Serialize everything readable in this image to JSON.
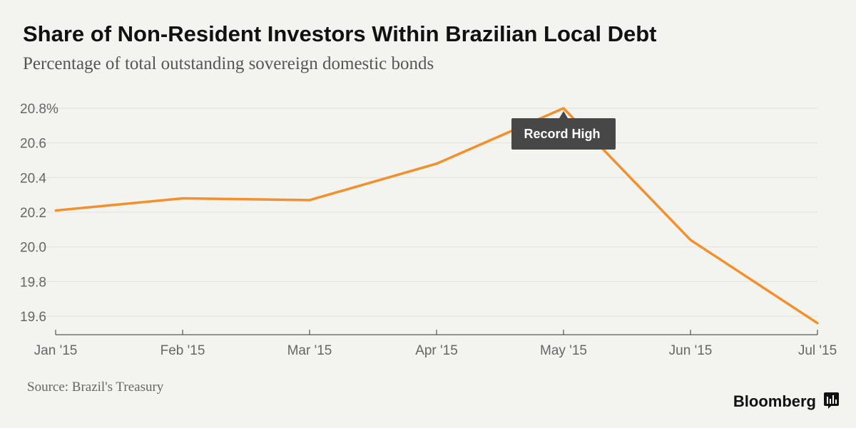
{
  "header": {
    "title": "Share of Non-Resident Investors Within Brazilian Local Debt",
    "subtitle": "Percentage of total outstanding sovereign domestic bonds"
  },
  "footer": {
    "source": "Source: Brazil's Treasury",
    "brand": "Bloomberg"
  },
  "colors": {
    "background": "#f3f3ef",
    "series": "#f4902b",
    "annotation_bg": "#474747",
    "annotation_text": "#ffffff"
  },
  "icons": {
    "brand": "bloomberg-bars-icon"
  },
  "chart_data": {
    "type": "line",
    "title": "Share of Non-Resident Investors Within Brazilian Local Debt",
    "subtitle": "Percentage of total outstanding sovereign domestic bonds",
    "xlabel": "",
    "ylabel": "",
    "categories": [
      "Jan '15",
      "Feb '15",
      "Mar '15",
      "Apr '15",
      "May '15",
      "Jun '15",
      "Jul '15"
    ],
    "series": [
      {
        "values": [
          20.21,
          20.28,
          20.27,
          20.48,
          20.8,
          20.04,
          19.56
        ]
      }
    ],
    "yticks": [
      "20.8%",
      "20.6",
      "20.4",
      "20.2",
      "20.0",
      "19.8",
      "19.6"
    ],
    "ytick_values": [
      20.8,
      20.6,
      20.4,
      20.2,
      20.0,
      19.8,
      19.6
    ],
    "ylim": [
      19.5,
      20.8
    ],
    "grid": true,
    "annotations": [
      {
        "text": "Record High",
        "category": "May '15",
        "value": 20.8
      }
    ]
  }
}
